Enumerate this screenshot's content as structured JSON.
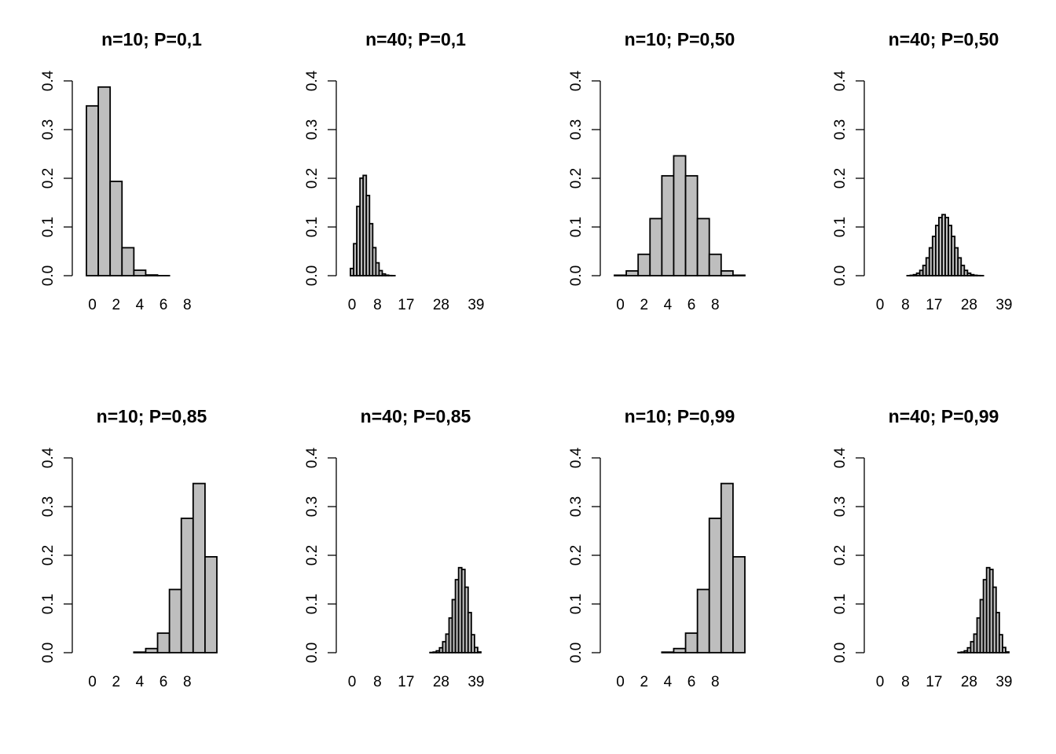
{
  "chart_data": [
    {
      "type": "bar",
      "title": "n=10; P=0,1",
      "categories": [
        0,
        1,
        2,
        3,
        4,
        5,
        6,
        7,
        8,
        9,
        10
      ],
      "x_tick_labels": [
        "0",
        "2",
        "4",
        "6",
        "8"
      ],
      "y_tick_labels": [
        "0.0",
        "0.1",
        "0.2",
        "0.3",
        "0.4"
      ],
      "ylim": [
        0,
        0.4
      ],
      "bar_color": "#bebebe",
      "values": [
        0.3487,
        0.3874,
        0.1937,
        0.0574,
        0.0112,
        0.0015,
        0.0001,
        0.0,
        0.0,
        0.0,
        0.0
      ]
    },
    {
      "type": "bar",
      "title": "n=40; P=0,1",
      "categories": [
        0,
        1,
        2,
        3,
        4,
        5,
        6,
        7,
        8,
        9,
        10,
        11,
        12,
        13,
        14,
        15,
        16,
        17,
        18,
        19,
        20,
        21,
        22,
        23,
        24,
        25,
        26,
        27,
        28,
        29,
        30,
        31,
        32,
        33,
        34,
        35,
        36,
        37,
        38,
        39,
        40
      ],
      "x_tick_labels": [
        "0",
        "8",
        "17",
        "28",
        "39"
      ],
      "y_tick_labels": [
        "0.0",
        "0.1",
        "0.2",
        "0.3",
        "0.4"
      ],
      "ylim": [
        0,
        0.4
      ],
      "bar_color": "#bebebe",
      "values": [
        0.0148,
        0.0657,
        0.1423,
        0.2003,
        0.2059,
        0.1647,
        0.1068,
        0.0576,
        0.0264,
        0.0104,
        0.0036,
        0.0011,
        0.0003,
        0.0001,
        0,
        0,
        0,
        0,
        0,
        0,
        0,
        0,
        0,
        0,
        0,
        0,
        0,
        0,
        0,
        0,
        0,
        0,
        0,
        0,
        0,
        0,
        0,
        0,
        0,
        0,
        0
      ]
    },
    {
      "type": "bar",
      "title": "n=10; P=0,50",
      "categories": [
        0,
        1,
        2,
        3,
        4,
        5,
        6,
        7,
        8,
        9,
        10
      ],
      "x_tick_labels": [
        "0",
        "2",
        "4",
        "6",
        "8"
      ],
      "y_tick_labels": [
        "0.0",
        "0.1",
        "0.2",
        "0.3",
        "0.4"
      ],
      "ylim": [
        0,
        0.4
      ],
      "bar_color": "#bebebe",
      "values": [
        0.001,
        0.0098,
        0.0439,
        0.1172,
        0.2051,
        0.2461,
        0.2051,
        0.1172,
        0.0439,
        0.0098,
        0.001
      ]
    },
    {
      "type": "bar",
      "title": "n=40; P=0,50",
      "categories": [
        0,
        1,
        2,
        3,
        4,
        5,
        6,
        7,
        8,
        9,
        10,
        11,
        12,
        13,
        14,
        15,
        16,
        17,
        18,
        19,
        20,
        21,
        22,
        23,
        24,
        25,
        26,
        27,
        28,
        29,
        30,
        31,
        32,
        33,
        34,
        35,
        36,
        37,
        38,
        39,
        40
      ],
      "x_tick_labels": [
        "0",
        "8",
        "17",
        "28",
        "39"
      ],
      "y_tick_labels": [
        "0.0",
        "0.1",
        "0.2",
        "0.3",
        "0.4"
      ],
      "ylim": [
        0,
        0.4
      ],
      "bar_color": "#bebebe",
      "values": [
        0,
        0,
        0,
        0,
        0,
        0,
        0,
        0,
        0,
        0.0001,
        0.0008,
        0.0021,
        0.0051,
        0.0109,
        0.0211,
        0.0366,
        0.0572,
        0.0807,
        0.1031,
        0.1194,
        0.1254,
        0.1194,
        0.1031,
        0.0807,
        0.0572,
        0.0366,
        0.0211,
        0.0109,
        0.0051,
        0.0021,
        0.0008,
        0.0003,
        0.0001,
        0,
        0,
        0,
        0,
        0,
        0,
        0,
        0
      ]
    },
    {
      "type": "bar",
      "title": "n=10; P=0,85",
      "categories": [
        0,
        1,
        2,
        3,
        4,
        5,
        6,
        7,
        8,
        9,
        10
      ],
      "x_tick_labels": [
        "0",
        "2",
        "4",
        "6",
        "8"
      ],
      "y_tick_labels": [
        "0.0",
        "0.1",
        "0.2",
        "0.3",
        "0.4"
      ],
      "ylim": [
        0,
        0.4
      ],
      "bar_color": "#bebebe",
      "values": [
        0,
        0,
        0,
        0,
        0.0012,
        0.0085,
        0.0401,
        0.1298,
        0.2759,
        0.3474,
        0.1969
      ]
    },
    {
      "type": "bar",
      "title": "n=40; P=0,85",
      "categories": [
        0,
        1,
        2,
        3,
        4,
        5,
        6,
        7,
        8,
        9,
        10,
        11,
        12,
        13,
        14,
        15,
        16,
        17,
        18,
        19,
        20,
        21,
        22,
        23,
        24,
        25,
        26,
        27,
        28,
        29,
        30,
        31,
        32,
        33,
        34,
        35,
        36,
        37,
        38,
        39,
        40
      ],
      "x_tick_labels": [
        "0",
        "8",
        "17",
        "28",
        "39"
      ],
      "y_tick_labels": [
        "0.0",
        "0.1",
        "0.2",
        "0.3",
        "0.4"
      ],
      "ylim": [
        0,
        0.4
      ],
      "bar_color": "#bebebe",
      "values": [
        0,
        0,
        0,
        0,
        0,
        0,
        0,
        0,
        0,
        0,
        0,
        0,
        0,
        0,
        0,
        0,
        0,
        0,
        0,
        0,
        0,
        0,
        0,
        0,
        0,
        0.0005,
        0.0013,
        0.0038,
        0.0101,
        0.0225,
        0.0382,
        0.0713,
        0.1089,
        0.1499,
        0.1746,
        0.1709,
        0.1345,
        0.0824,
        0.0369,
        0.0107,
        0.0015
      ]
    },
    {
      "type": "bar",
      "title": "n=10; P=0,99",
      "categories": [
        0,
        1,
        2,
        3,
        4,
        5,
        6,
        7,
        8,
        9,
        10
      ],
      "x_tick_labels": [
        "0",
        "2",
        "4",
        "6",
        "8"
      ],
      "y_tick_labels": [
        "0.0",
        "0.1",
        "0.2",
        "0.3",
        "0.4"
      ],
      "ylim": [
        0,
        0.4
      ],
      "bar_color": "#bebebe",
      "values": [
        0,
        0,
        0,
        0,
        0.0012,
        0.0085,
        0.0401,
        0.1298,
        0.2759,
        0.3474,
        0.1969
      ]
    },
    {
      "type": "bar",
      "title": "n=40; P=0,99",
      "categories": [
        0,
        1,
        2,
        3,
        4,
        5,
        6,
        7,
        8,
        9,
        10,
        11,
        12,
        13,
        14,
        15,
        16,
        17,
        18,
        19,
        20,
        21,
        22,
        23,
        24,
        25,
        26,
        27,
        28,
        29,
        30,
        31,
        32,
        33,
        34,
        35,
        36,
        37,
        38,
        39,
        40
      ],
      "x_tick_labels": [
        "0",
        "8",
        "17",
        "28",
        "39"
      ],
      "y_tick_labels": [
        "0.0",
        "0.1",
        "0.2",
        "0.3",
        "0.4"
      ],
      "ylim": [
        0,
        0.4
      ],
      "bar_color": "#bebebe",
      "values": [
        0,
        0,
        0,
        0,
        0,
        0,
        0,
        0,
        0,
        0,
        0,
        0,
        0,
        0,
        0,
        0,
        0,
        0,
        0,
        0,
        0,
        0,
        0,
        0,
        0,
        0.0005,
        0.0013,
        0.0038,
        0.0101,
        0.0225,
        0.0382,
        0.0713,
        0.1089,
        0.1499,
        0.1746,
        0.1709,
        0.1345,
        0.0824,
        0.0369,
        0.0107,
        0.0015
      ]
    }
  ]
}
